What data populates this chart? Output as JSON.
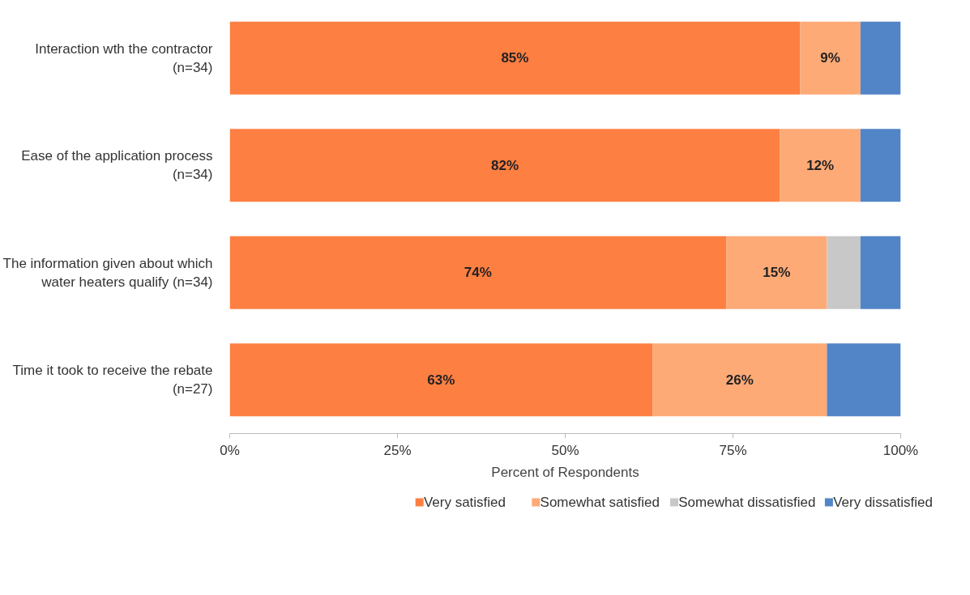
{
  "chart_data": {
    "type": "bar",
    "orientation": "horizontal",
    "stacked": true,
    "xlabel": "Percent of Respondents",
    "categories": [
      "Interaction wth the contractor (n=34)",
      "Ease of the application process (n=34)",
      "The information given about which water heaters qualify (n=34)",
      "Time it took to receive the rebate (n=27)"
    ],
    "series": [
      {
        "name": "Very satisfied",
        "color": "#fe7f42",
        "values": [
          85,
          82,
          74,
          63
        ],
        "value_labels": [
          "85%",
          "82%",
          "74%",
          "63%"
        ]
      },
      {
        "name": "Somewhat satisfied",
        "color": "#fdaa77",
        "values": [
          9,
          12,
          15,
          26
        ],
        "value_labels": [
          "9%",
          "12%",
          "15%",
          "26%"
        ]
      },
      {
        "name": "Somewhat dissatisfied",
        "color": "#c8c8c8",
        "values": [
          0,
          0,
          5,
          0
        ],
        "value_labels": [
          null,
          null,
          null,
          null
        ]
      },
      {
        "name": "Very dissatisfied",
        "color": "#5285c7",
        "values": [
          6,
          6,
          6,
          11
        ],
        "value_labels": [
          null,
          null,
          null,
          null
        ]
      }
    ],
    "xlim": [
      0,
      100
    ],
    "xticks": [
      {
        "value": 0,
        "label": "0%"
      },
      {
        "value": 25,
        "label": "25%"
      },
      {
        "value": 50,
        "label": "50%"
      },
      {
        "value": 75,
        "label": "75%"
      },
      {
        "value": 100,
        "label": "100%"
      }
    ],
    "grid": false,
    "legend": "bottom"
  }
}
